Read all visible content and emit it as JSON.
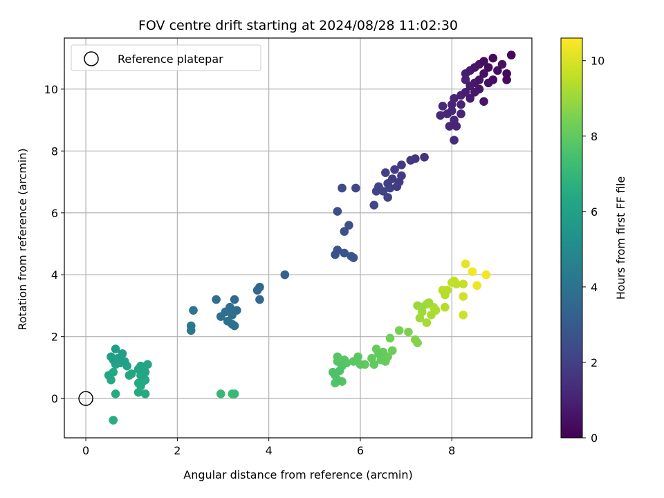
{
  "chart_data": {
    "type": "scatter",
    "title": "FOV centre drift starting at 2024/08/28 11:02:30",
    "xlabel": "Angular distance from reference (arcmin)",
    "ylabel": "Rotation from reference (arcmin)",
    "xlim": [
      -0.47,
      9.75
    ],
    "ylim": [
      -1.27,
      11.65
    ],
    "xticks": [
      0,
      2,
      4,
      6,
      8
    ],
    "yticks": [
      0,
      2,
      4,
      6,
      8,
      10
    ],
    "grid": true,
    "legend": {
      "position": "top-left",
      "entries": [
        "Reference platepar"
      ]
    },
    "reference_point": {
      "x": 0,
      "y": 0,
      "label": "Reference platepar"
    },
    "colorbar": {
      "label": "Hours from first FF file",
      "colormap": "viridis",
      "range": [
        0,
        10.6
      ],
      "ticks": [
        0,
        2,
        4,
        6,
        8,
        10
      ]
    },
    "points": [
      [
        9.3,
        11.1,
        0.2
      ],
      [
        8.9,
        11.0,
        0.3
      ],
      [
        8.7,
        10.9,
        0.4
      ],
      [
        9.1,
        10.8,
        0.5
      ],
      [
        8.6,
        10.8,
        0.6
      ],
      [
        8.5,
        10.7,
        0.7
      ],
      [
        8.8,
        10.7,
        0.3
      ],
      [
        9.0,
        10.6,
        0.4
      ],
      [
        8.4,
        10.6,
        0.8
      ],
      [
        8.3,
        10.5,
        0.9
      ],
      [
        8.7,
        10.5,
        0.5
      ],
      [
        9.2,
        10.5,
        0.2
      ],
      [
        8.3,
        10.3,
        1.0
      ],
      [
        8.6,
        10.3,
        0.6
      ],
      [
        8.9,
        10.3,
        0.4
      ],
      [
        9.2,
        10.3,
        0.3
      ],
      [
        8.5,
        10.2,
        0.7
      ],
      [
        8.8,
        10.2,
        0.5
      ],
      [
        8.4,
        10.1,
        0.8
      ],
      [
        8.6,
        10.0,
        0.6
      ],
      [
        8.3,
        9.9,
        0.9
      ],
      [
        8.5,
        9.9,
        0.7
      ],
      [
        8.2,
        9.8,
        1.0
      ],
      [
        8.4,
        9.7,
        0.8
      ],
      [
        8.7,
        9.6,
        0.6
      ],
      [
        8.05,
        9.7,
        1.1
      ],
      [
        8.2,
        9.5,
        1.0
      ],
      [
        8.0,
        9.5,
        1.1
      ],
      [
        7.8,
        9.45,
        1.3
      ],
      [
        8.0,
        9.3,
        1.2
      ],
      [
        8.2,
        9.2,
        1.1
      ],
      [
        7.9,
        9.2,
        1.2
      ],
      [
        7.75,
        9.15,
        1.3
      ],
      [
        8.05,
        9.0,
        1.2
      ],
      [
        8.1,
        8.8,
        1.1
      ],
      [
        7.95,
        8.8,
        1.2
      ],
      [
        8.05,
        8.35,
        1.3
      ],
      [
        7.4,
        7.8,
        1.6
      ],
      [
        7.2,
        7.75,
        1.7
      ],
      [
        7.1,
        7.7,
        1.7
      ],
      [
        6.9,
        7.55,
        1.8
      ],
      [
        6.75,
        7.4,
        1.9
      ],
      [
        6.55,
        7.3,
        2.0
      ],
      [
        6.9,
        7.2,
        1.8
      ],
      [
        6.7,
        7.1,
        1.9
      ],
      [
        6.85,
        7.0,
        1.9
      ],
      [
        6.6,
        6.95,
        2.0
      ],
      [
        6.4,
        6.85,
        2.1
      ],
      [
        6.8,
        6.85,
        1.9
      ],
      [
        6.65,
        6.8,
        2.0
      ],
      [
        6.5,
        6.7,
        2.1
      ],
      [
        6.35,
        6.7,
        2.2
      ],
      [
        6.6,
        6.5,
        2.1
      ],
      [
        6.3,
        6.25,
        2.2
      ],
      [
        5.9,
        6.8,
        2.3
      ],
      [
        5.6,
        6.8,
        2.4
      ],
      [
        5.5,
        6.05,
        2.5
      ],
      [
        5.75,
        5.6,
        2.6
      ],
      [
        5.65,
        5.4,
        2.6
      ],
      [
        5.5,
        4.8,
        2.7
      ],
      [
        5.45,
        4.65,
        2.7
      ],
      [
        5.65,
        4.7,
        2.8
      ],
      [
        5.8,
        4.6,
        2.8
      ],
      [
        5.85,
        4.55,
        2.9
      ],
      [
        4.35,
        4.0,
        3.3
      ],
      [
        3.8,
        3.6,
        3.5
      ],
      [
        3.75,
        3.5,
        3.5
      ],
      [
        3.8,
        3.2,
        3.6
      ],
      [
        3.25,
        3.2,
        3.7
      ],
      [
        2.85,
        3.2,
        3.8
      ],
      [
        3.3,
        2.85,
        3.8
      ],
      [
        3.15,
        2.95,
        3.8
      ],
      [
        3.05,
        2.8,
        3.9
      ],
      [
        3.2,
        2.7,
        3.9
      ],
      [
        2.95,
        2.65,
        3.9
      ],
      [
        3.1,
        2.5,
        4.0
      ],
      [
        3.2,
        2.4,
        4.0
      ],
      [
        3.25,
        2.35,
        4.0
      ],
      [
        2.35,
        2.85,
        4.1
      ],
      [
        2.3,
        2.35,
        4.2
      ],
      [
        2.3,
        2.2,
        4.2
      ],
      [
        0.65,
        1.6,
        5.8
      ],
      [
        0.8,
        1.45,
        5.9
      ],
      [
        0.55,
        1.35,
        5.9
      ],
      [
        0.7,
        1.3,
        6.0
      ],
      [
        0.6,
        1.25,
        6.0
      ],
      [
        0.85,
        1.2,
        6.0
      ],
      [
        0.75,
        1.15,
        6.1
      ],
      [
        0.65,
        1.1,
        6.1
      ],
      [
        0.9,
        1.05,
        6.1
      ],
      [
        1.2,
        1.05,
        6.2
      ],
      [
        1.35,
        1.1,
        6.2
      ],
      [
        1.15,
        0.95,
        6.2
      ],
      [
        1.3,
        0.85,
        6.3
      ],
      [
        1.0,
        0.8,
        6.3
      ],
      [
        1.2,
        0.75,
        6.3
      ],
      [
        0.95,
        0.75,
        6.3
      ],
      [
        0.5,
        0.75,
        6.3
      ],
      [
        0.6,
        0.85,
        6.4
      ],
      [
        0.55,
        0.6,
        6.4
      ],
      [
        1.15,
        0.5,
        6.4
      ],
      [
        1.25,
        0.55,
        6.4
      ],
      [
        1.3,
        0.6,
        6.4
      ],
      [
        1.2,
        0.4,
        6.5
      ],
      [
        1.15,
        0.2,
        6.5
      ],
      [
        1.3,
        0.15,
        6.5
      ],
      [
        0.65,
        0.15,
        6.5
      ],
      [
        0.6,
        -0.7,
        6.6
      ],
      [
        2.95,
        0.15,
        7.0
      ],
      [
        3.2,
        0.15,
        7.1
      ],
      [
        3.25,
        0.15,
        7.1
      ],
      [
        5.4,
        0.85,
        7.6
      ],
      [
        5.45,
        0.75,
        7.6
      ],
      [
        5.5,
        0.6,
        7.6
      ],
      [
        5.6,
        0.55,
        7.7
      ],
      [
        5.45,
        0.5,
        7.7
      ],
      [
        5.55,
        0.9,
        7.6
      ],
      [
        5.6,
        1.05,
        7.7
      ],
      [
        5.5,
        1.2,
        7.8
      ],
      [
        5.5,
        1.35,
        7.8
      ],
      [
        5.65,
        1.25,
        7.8
      ],
      [
        5.7,
        1.15,
        7.8
      ],
      [
        5.85,
        1.2,
        7.9
      ],
      [
        5.95,
        1.35,
        7.9
      ],
      [
        6.0,
        1.1,
        7.9
      ],
      [
        6.1,
        1.1,
        8.0
      ],
      [
        6.3,
        1.1,
        8.0
      ],
      [
        6.25,
        1.3,
        8.0
      ],
      [
        6.4,
        1.45,
        8.0
      ],
      [
        6.35,
        1.6,
        8.1
      ],
      [
        6.5,
        1.5,
        8.1
      ],
      [
        6.45,
        1.25,
        8.1
      ],
      [
        6.55,
        1.2,
        8.1
      ],
      [
        6.6,
        1.35,
        8.2
      ],
      [
        6.7,
        1.55,
        8.2
      ],
      [
        6.65,
        1.95,
        8.3
      ],
      [
        6.85,
        2.2,
        8.4
      ],
      [
        7.05,
        2.15,
        8.5
      ],
      [
        7.2,
        1.9,
        8.6
      ],
      [
        7.25,
        1.8,
        8.6
      ],
      [
        7.25,
        3.0,
        9.0
      ],
      [
        7.35,
        2.95,
        9.0
      ],
      [
        7.45,
        3.05,
        9.1
      ],
      [
        7.5,
        3.1,
        9.1
      ],
      [
        7.35,
        2.8,
        9.1
      ],
      [
        7.3,
        2.6,
        9.1
      ],
      [
        7.45,
        2.45,
        9.2
      ],
      [
        7.55,
        2.7,
        9.2
      ],
      [
        7.65,
        2.85,
        9.3
      ],
      [
        7.6,
        2.95,
        9.3
      ],
      [
        7.85,
        2.95,
        9.4
      ],
      [
        7.85,
        3.35,
        9.4
      ],
      [
        7.8,
        3.5,
        9.5
      ],
      [
        7.9,
        3.5,
        9.5
      ],
      [
        8.0,
        3.75,
        9.6
      ],
      [
        8.05,
        3.8,
        9.6
      ],
      [
        8.1,
        3.7,
        9.6
      ],
      [
        8.25,
        3.7,
        9.7
      ],
      [
        8.25,
        3.3,
        9.8
      ],
      [
        8.25,
        2.7,
        9.8
      ],
      [
        8.3,
        4.35,
        10.2
      ],
      [
        8.55,
        3.65,
        10.3
      ],
      [
        8.75,
        4.0,
        10.4
      ],
      [
        8.45,
        4.1,
        10.5
      ]
    ]
  }
}
